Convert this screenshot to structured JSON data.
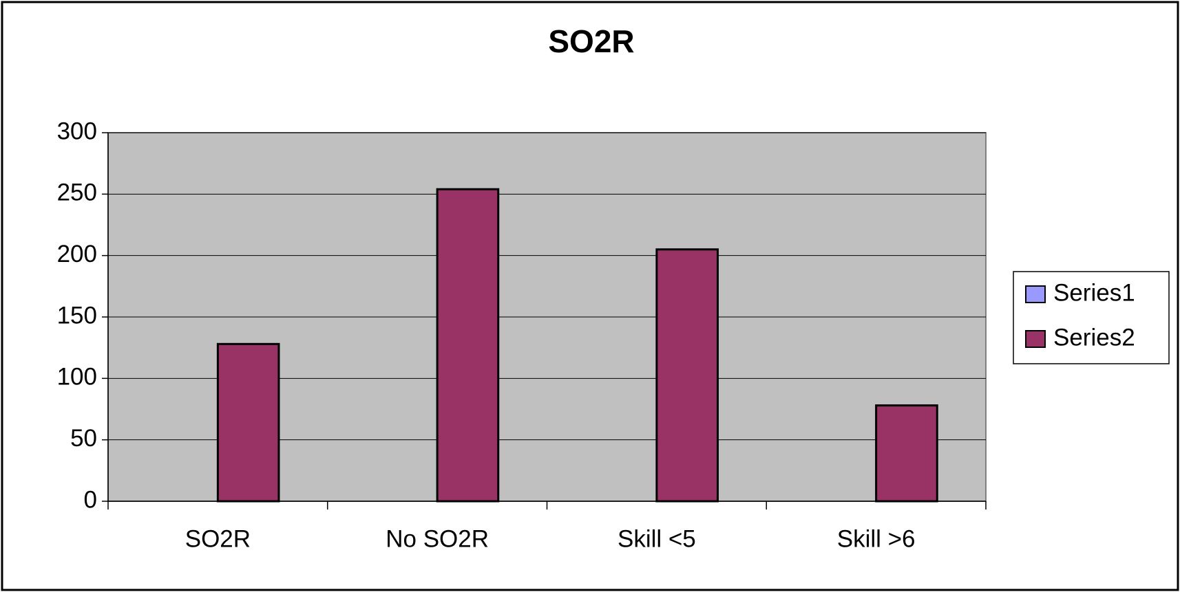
{
  "chart_data": {
    "type": "bar",
    "title": "SO2R",
    "categories": [
      "SO2R",
      "No SO2R",
      "Skill <5",
      "Skill >6"
    ],
    "series": [
      {
        "name": "Series1",
        "color": "#9999ff",
        "values": [
          0,
          0,
          0,
          0
        ]
      },
      {
        "name": "Series2",
        "color": "#993366",
        "values": [
          128,
          254,
          205,
          78
        ]
      }
    ],
    "ylim": [
      0,
      300
    ],
    "yticks": [
      0,
      50,
      100,
      150,
      200,
      250,
      300
    ],
    "grid": true,
    "legend": "right"
  }
}
